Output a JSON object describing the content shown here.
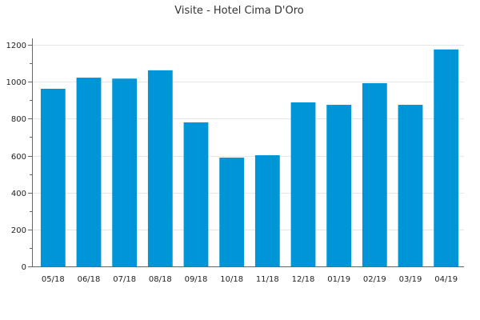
{
  "chart_data": {
    "type": "bar",
    "title": "Visite - Hotel Cima D'Oro",
    "xlabel": "",
    "ylabel": "",
    "categories": [
      "05/18",
      "06/18",
      "07/18",
      "08/18",
      "09/18",
      "10/18",
      "11/18",
      "12/18",
      "01/19",
      "02/19",
      "03/19",
      "04/19"
    ],
    "values": [
      962,
      1022,
      1017,
      1062,
      780,
      589,
      602,
      888,
      875,
      992,
      875,
      1175
    ],
    "ylim": [
      0,
      1200
    ],
    "yticks": [
      0,
      200,
      400,
      600,
      800,
      1000,
      1200
    ],
    "grid": true,
    "legend": "none",
    "bar_color": "#0095d6"
  }
}
